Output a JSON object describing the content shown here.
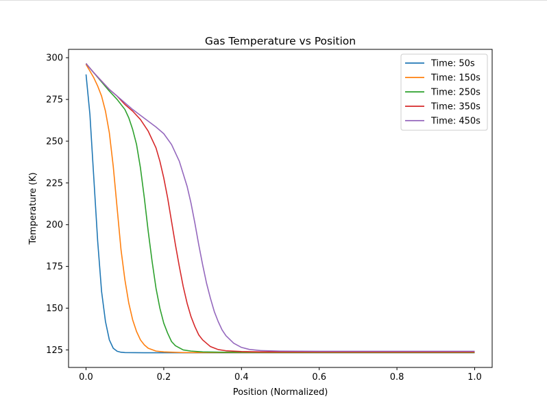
{
  "chart_data": {
    "type": "line",
    "title": "Gas Temperature vs Position",
    "xlabel": "Position (Normalized)",
    "ylabel": "Temperature (K)",
    "xlim": [
      -0.045,
      1.045
    ],
    "ylim": [
      114.5,
      305
    ],
    "xticks": [
      0.0,
      0.2,
      0.4,
      0.6,
      0.8,
      1.0
    ],
    "xtick_labels": [
      "0.0",
      "0.2",
      "0.4",
      "0.6",
      "0.8",
      "1.0"
    ],
    "yticks": [
      125,
      150,
      175,
      200,
      225,
      250,
      275,
      300
    ],
    "ytick_labels": [
      "125",
      "150",
      "175",
      "200",
      "225",
      "250",
      "275",
      "300"
    ],
    "grid": false,
    "legend_position": "top-right",
    "series": [
      {
        "name": "Time: 50s",
        "color": "#1f77b4",
        "x": [
          0.0,
          0.01,
          0.02,
          0.03,
          0.04,
          0.05,
          0.06,
          0.07,
          0.08,
          0.09,
          0.1,
          0.15,
          0.2,
          0.3,
          0.4,
          0.5,
          0.6,
          0.7,
          0.8,
          0.9,
          1.0
        ],
        "y": [
          290,
          266,
          228,
          190,
          160,
          142,
          131,
          126,
          124.2,
          123.6,
          123.4,
          123.3,
          123.3,
          123.3,
          123.3,
          123.3,
          123.3,
          123.3,
          123.3,
          123.3,
          123.3
        ]
      },
      {
        "name": "Time: 150s",
        "color": "#ff7f0e",
        "x": [
          0.0,
          0.01,
          0.02,
          0.03,
          0.04,
          0.05,
          0.06,
          0.07,
          0.08,
          0.09,
          0.1,
          0.11,
          0.12,
          0.13,
          0.14,
          0.15,
          0.16,
          0.18,
          0.2,
          0.25,
          0.3,
          0.4,
          0.5,
          0.6,
          0.7,
          0.8,
          0.9,
          1.0
        ],
        "y": [
          296,
          292,
          288,
          283,
          277,
          268,
          255,
          235,
          210,
          185,
          167,
          153,
          143,
          136,
          131,
          128,
          126,
          124.3,
          123.8,
          123.4,
          123.4,
          123.4,
          123.4,
          123.4,
          123.4,
          123.4,
          123.4,
          123.4
        ]
      },
      {
        "name": "Time: 250s",
        "color": "#2ca02c",
        "x": [
          0.0,
          0.02,
          0.04,
          0.06,
          0.08,
          0.1,
          0.11,
          0.12,
          0.13,
          0.14,
          0.15,
          0.16,
          0.17,
          0.18,
          0.19,
          0.2,
          0.21,
          0.22,
          0.23,
          0.25,
          0.27,
          0.3,
          0.35,
          0.4,
          0.5,
          0.6,
          0.7,
          0.8,
          0.9,
          1.0
        ],
        "y": [
          296.5,
          291,
          285.5,
          280,
          275,
          269,
          264,
          257,
          248,
          234,
          216,
          196,
          178,
          162,
          150,
          141,
          135,
          130,
          127.5,
          125,
          124.3,
          123.8,
          123.6,
          123.6,
          123.6,
          123.6,
          123.6,
          123.6,
          123.6,
          123.6
        ]
      },
      {
        "name": "Time: 350s",
        "color": "#d62728",
        "x": [
          0.0,
          0.02,
          0.04,
          0.06,
          0.08,
          0.1,
          0.12,
          0.14,
          0.16,
          0.18,
          0.19,
          0.2,
          0.21,
          0.22,
          0.23,
          0.24,
          0.25,
          0.26,
          0.27,
          0.28,
          0.29,
          0.3,
          0.32,
          0.34,
          0.36,
          0.4,
          0.45,
          0.5,
          0.6,
          0.7,
          0.8,
          0.9,
          1.0
        ],
        "y": [
          296.5,
          291,
          286,
          281,
          277,
          272,
          268,
          263,
          256,
          246,
          238,
          228,
          216,
          202,
          188,
          175,
          163,
          153,
          145,
          139,
          134,
          131,
          127,
          125.2,
          124.5,
          124,
          123.8,
          123.8,
          123.8,
          123.8,
          123.8,
          123.8,
          123.8
        ]
      },
      {
        "name": "Time: 450s",
        "color": "#9467bd",
        "x": [
          0.0,
          0.02,
          0.04,
          0.06,
          0.08,
          0.1,
          0.12,
          0.14,
          0.16,
          0.18,
          0.2,
          0.22,
          0.24,
          0.26,
          0.27,
          0.28,
          0.29,
          0.3,
          0.31,
          0.32,
          0.33,
          0.34,
          0.35,
          0.36,
          0.38,
          0.4,
          0.42,
          0.45,
          0.5,
          0.6,
          0.7,
          0.8,
          0.9,
          1.0
        ],
        "y": [
          296.5,
          291,
          286,
          281,
          277,
          273,
          269,
          265.5,
          262,
          258.5,
          254.5,
          248,
          238,
          223,
          213,
          201,
          188,
          176,
          165,
          156,
          148,
          142,
          137,
          133.5,
          129,
          126.5,
          125.3,
          124.6,
          124.3,
          124.2,
          124.2,
          124.2,
          124.2,
          124.2
        ]
      }
    ]
  }
}
